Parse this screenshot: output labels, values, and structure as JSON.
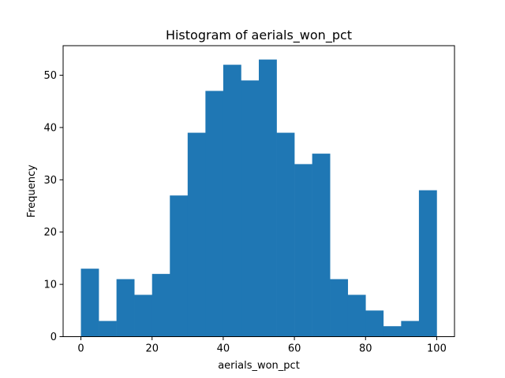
{
  "chart_data": {
    "type": "bar",
    "title": "Histogram of aerials_won_pct",
    "xlabel": "aerials_won_pct",
    "ylabel": "Frequency",
    "bin_edges": [
      0,
      5,
      10,
      15,
      20,
      25,
      30,
      35,
      40,
      45,
      50,
      55,
      60,
      65,
      70,
      75,
      80,
      85,
      90,
      95,
      100
    ],
    "values": [
      13,
      3,
      11,
      8,
      12,
      27,
      39,
      47,
      52,
      49,
      53,
      39,
      33,
      35,
      11,
      8,
      5,
      2,
      3,
      28
    ],
    "xlim": [
      -5,
      105
    ],
    "ylim": [
      0,
      55.65
    ],
    "xticks": [
      0,
      20,
      40,
      60,
      80,
      100
    ],
    "yticks": [
      0,
      10,
      20,
      30,
      40,
      50
    ],
    "bar_color": "#1f77b4",
    "grid": false
  }
}
